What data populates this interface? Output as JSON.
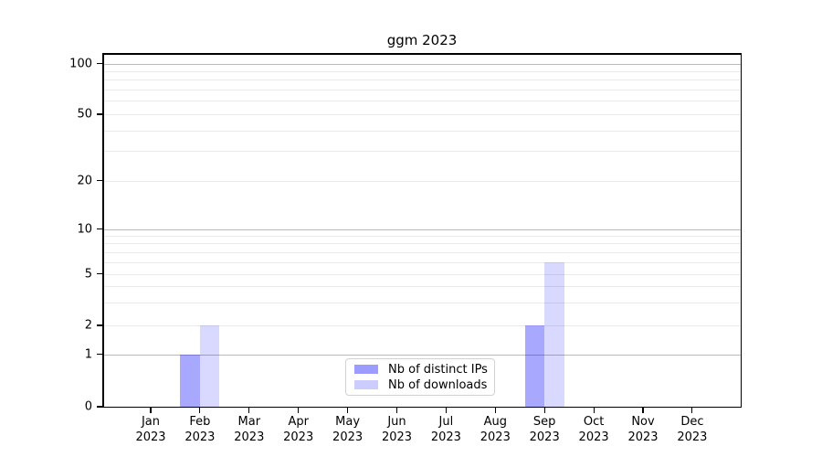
{
  "title": "ggm 2023",
  "chart_data": {
    "type": "bar",
    "title": "ggm 2023",
    "categories": [
      "Jan 2023",
      "Feb 2023",
      "Mar 2023",
      "Apr 2023",
      "May 2023",
      "Jun 2023",
      "Jul 2023",
      "Aug 2023",
      "Sep 2023",
      "Oct 2023",
      "Nov 2023",
      "Dec 2023"
    ],
    "series": [
      {
        "name": "Nb of distinct IPs",
        "color": "#0000ff",
        "alpha": 0.34,
        "rendered_color": "#aaaaff",
        "values": [
          0,
          1,
          0,
          0,
          0,
          0,
          0,
          0,
          2,
          0,
          0,
          0
        ]
      },
      {
        "name": "Nb of downloads",
        "color": "#0000ff",
        "alpha": 0.15,
        "rendered_color": "#dadaff",
        "values": [
          0,
          2,
          0,
          0,
          0,
          0,
          0,
          0,
          6,
          0,
          0,
          0
        ]
      }
    ],
    "y_axis": {
      "scale": "log-like",
      "tick_labels": [
        0,
        1,
        2,
        5,
        10,
        20,
        50,
        100
      ],
      "major_grid_values": [
        1,
        10,
        100
      ],
      "minor_grid_values": [
        2,
        3,
        4,
        5,
        6,
        7,
        8,
        9,
        20,
        30,
        40,
        50,
        60,
        70,
        80,
        90
      ],
      "range": [
        0,
        115
      ]
    },
    "grid": "horizontal-major-and-minor",
    "legend_position": "inside-bottom-center",
    "xlabel": "",
    "ylabel": ""
  },
  "colors": {
    "background": "#ffffff",
    "spine": "#000000",
    "major_grid": "#bababa",
    "minor_grid": "#e9e9e9",
    "legend_border": "#d2d2d2",
    "text": "#000000"
  }
}
